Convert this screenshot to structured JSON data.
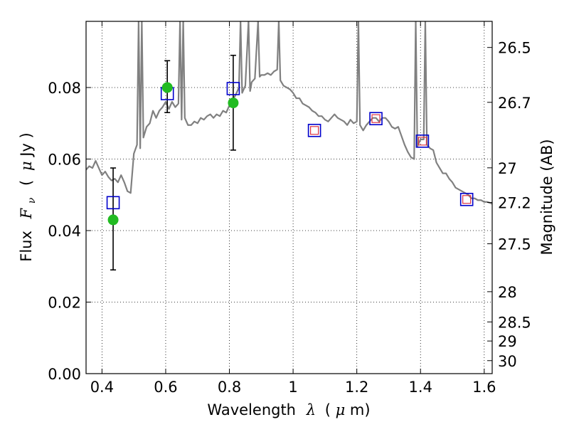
{
  "chart_data": {
    "type": "line",
    "xlabel": "Wavelength",
    "xlabel_symbol": "λ",
    "xlabel_unit_open": "(",
    "xlabel_unit_mu": "μ",
    "xlabel_unit_close": "m)",
    "ylabel": "Flux",
    "ylabel_symbol": "F",
    "ylabel_sub": "ν",
    "ylabel_unit_open": "(",
    "ylabel_unit_mu": "μ",
    "ylabel_unit_close": "Jy )",
    "y2label": "Magnitude (AB)",
    "xlim": [
      0.35,
      1.625
    ],
    "ylim": [
      0.0,
      0.0985
    ],
    "grid": true,
    "x_ticks": [
      0.4,
      0.6,
      0.8,
      1.0,
      1.2,
      1.4,
      1.6
    ],
    "x_tick_labels": [
      "0.4",
      "0.6",
      "0.8",
      "1",
      "1.2",
      "1.4",
      "1.6"
    ],
    "y_ticks": [
      0.0,
      0.02,
      0.04,
      0.06,
      0.08
    ],
    "y_tick_labels": [
      "0.00",
      "0.02",
      "0.04",
      "0.06",
      "0.08"
    ],
    "y2_ticks": [
      {
        "label": "26.5",
        "mag": 26.5
      },
      {
        "label": "26.7",
        "mag": 26.7
      },
      {
        "label": "27",
        "mag": 27.0
      },
      {
        "label": "27.2",
        "mag": 27.2
      },
      {
        "label": "27.5",
        "mag": 27.5
      },
      {
        "label": "28",
        "mag": 28.0
      },
      {
        "label": "28.5",
        "mag": 28.5
      },
      {
        "label": "29",
        "mag": 29.0
      },
      {
        "label": "30",
        "mag": 30.0
      }
    ],
    "colors": {
      "model": "#808080",
      "observed": "#22bb22",
      "model_band": "#0000cc",
      "inner_square": "#dd3344",
      "errorbar": "#000000"
    },
    "series": [
      {
        "name": "model_spectrum",
        "type": "line",
        "points": [
          [
            0.35,
            0.057
          ],
          [
            0.36,
            0.058
          ],
          [
            0.37,
            0.0575
          ],
          [
            0.38,
            0.0595
          ],
          [
            0.39,
            0.0575
          ],
          [
            0.4,
            0.0555
          ],
          [
            0.41,
            0.0565
          ],
          [
            0.42,
            0.055
          ],
          [
            0.43,
            0.054
          ],
          [
            0.44,
            0.0545
          ],
          [
            0.45,
            0.0535
          ],
          [
            0.46,
            0.0555
          ],
          [
            0.47,
            0.0535
          ],
          [
            0.48,
            0.051
          ],
          [
            0.49,
            0.0505
          ],
          [
            0.495,
            0.056
          ],
          [
            0.5,
            0.0615
          ],
          [
            0.51,
            0.064
          ],
          [
            0.515,
            0.0985
          ],
          [
            0.52,
            0.063
          ],
          [
            0.525,
            0.0985
          ],
          [
            0.53,
            0.066
          ],
          [
            0.54,
            0.069
          ],
          [
            0.55,
            0.07
          ],
          [
            0.56,
            0.0735
          ],
          [
            0.57,
            0.0715
          ],
          [
            0.58,
            0.0735
          ],
          [
            0.59,
            0.0745
          ],
          [
            0.6,
            0.076
          ],
          [
            0.61,
            0.074
          ],
          [
            0.62,
            0.076
          ],
          [
            0.63,
            0.0745
          ],
          [
            0.64,
            0.0755
          ],
          [
            0.645,
            0.0985
          ],
          [
            0.65,
            0.071
          ],
          [
            0.655,
            0.0985
          ],
          [
            0.66,
            0.0715
          ],
          [
            0.67,
            0.0695
          ],
          [
            0.68,
            0.0695
          ],
          [
            0.69,
            0.0705
          ],
          [
            0.7,
            0.07
          ],
          [
            0.71,
            0.0715
          ],
          [
            0.72,
            0.071
          ],
          [
            0.73,
            0.072
          ],
          [
            0.74,
            0.0725
          ],
          [
            0.75,
            0.0715
          ],
          [
            0.76,
            0.0725
          ],
          [
            0.77,
            0.072
          ],
          [
            0.78,
            0.0735
          ],
          [
            0.79,
            0.073
          ],
          [
            0.8,
            0.075
          ],
          [
            0.81,
            0.0765
          ],
          [
            0.82,
            0.078
          ],
          [
            0.83,
            0.08
          ],
          [
            0.835,
            0.0985
          ],
          [
            0.84,
            0.0785
          ],
          [
            0.85,
            0.0805
          ],
          [
            0.86,
            0.0985
          ],
          [
            0.865,
            0.079
          ],
          [
            0.87,
            0.0815
          ],
          [
            0.88,
            0.0825
          ],
          [
            0.89,
            0.0985
          ],
          [
            0.895,
            0.083
          ],
          [
            0.9,
            0.0835
          ],
          [
            0.91,
            0.0835
          ],
          [
            0.92,
            0.084
          ],
          [
            0.93,
            0.0835
          ],
          [
            0.94,
            0.0845
          ],
          [
            0.95,
            0.085
          ],
          [
            0.955,
            0.0985
          ],
          [
            0.96,
            0.082
          ],
          [
            0.97,
            0.0805
          ],
          [
            0.98,
            0.08
          ],
          [
            0.99,
            0.0795
          ],
          [
            1.0,
            0.0785
          ],
          [
            1.01,
            0.077
          ],
          [
            1.02,
            0.077
          ],
          [
            1.03,
            0.0755
          ],
          [
            1.04,
            0.075
          ],
          [
            1.05,
            0.0745
          ],
          [
            1.06,
            0.0735
          ],
          [
            1.07,
            0.073
          ],
          [
            1.08,
            0.072
          ],
          [
            1.09,
            0.072
          ],
          [
            1.1,
            0.071
          ],
          [
            1.11,
            0.0705
          ],
          [
            1.12,
            0.0715
          ],
          [
            1.13,
            0.0725
          ],
          [
            1.14,
            0.0715
          ],
          [
            1.15,
            0.071
          ],
          [
            1.16,
            0.0705
          ],
          [
            1.17,
            0.0695
          ],
          [
            1.18,
            0.071
          ],
          [
            1.19,
            0.07
          ],
          [
            1.2,
            0.0705
          ],
          [
            1.205,
            0.0985
          ],
          [
            1.21,
            0.0695
          ],
          [
            1.22,
            0.068
          ],
          [
            1.23,
            0.0695
          ],
          [
            1.24,
            0.0705
          ],
          [
            1.25,
            0.0715
          ],
          [
            1.26,
            0.0715
          ],
          [
            1.27,
            0.0705
          ],
          [
            1.28,
            0.0715
          ],
          [
            1.29,
            0.0715
          ],
          [
            1.3,
            0.0705
          ],
          [
            1.31,
            0.069
          ],
          [
            1.32,
            0.0685
          ],
          [
            1.33,
            0.069
          ],
          [
            1.34,
            0.0665
          ],
          [
            1.35,
            0.064
          ],
          [
            1.36,
            0.062
          ],
          [
            1.37,
            0.0605
          ],
          [
            1.38,
            0.06
          ],
          [
            1.385,
            0.0985
          ],
          [
            1.39,
            0.0635
          ],
          [
            1.4,
            0.0655
          ],
          [
            1.41,
            0.0655
          ],
          [
            1.415,
            0.0985
          ],
          [
            1.42,
            0.064
          ],
          [
            1.43,
            0.063
          ],
          [
            1.44,
            0.0625
          ],
          [
            1.45,
            0.059
          ],
          [
            1.46,
            0.0575
          ],
          [
            1.47,
            0.056
          ],
          [
            1.48,
            0.056
          ],
          [
            1.49,
            0.0545
          ],
          [
            1.5,
            0.0535
          ],
          [
            1.51,
            0.052
          ],
          [
            1.52,
            0.0515
          ],
          [
            1.53,
            0.051
          ],
          [
            1.54,
            0.0505
          ],
          [
            1.55,
            0.05
          ],
          [
            1.56,
            0.049
          ],
          [
            1.57,
            0.049
          ],
          [
            1.58,
            0.0485
          ],
          [
            1.59,
            0.0485
          ],
          [
            1.6,
            0.048
          ],
          [
            1.61,
            0.048
          ],
          [
            1.625,
            0.0475
          ]
        ]
      },
      {
        "name": "model_band_fluxes",
        "type": "marker-square",
        "points": [
          [
            0.435,
            0.0478
          ],
          [
            0.605,
            0.0783
          ],
          [
            0.812,
            0.0797
          ],
          [
            1.067,
            0.068
          ],
          [
            1.26,
            0.0713
          ],
          [
            1.406,
            0.065
          ],
          [
            1.545,
            0.0487
          ]
        ]
      },
      {
        "name": "inner_squares",
        "type": "marker-square-small",
        "points": [
          [
            1.067,
            0.068
          ],
          [
            1.26,
            0.0713
          ],
          [
            1.406,
            0.065
          ],
          [
            1.545,
            0.0487
          ]
        ]
      },
      {
        "name": "observed",
        "type": "marker-circle",
        "points": [
          [
            0.435,
            0.043
          ],
          [
            0.605,
            0.08
          ],
          [
            0.812,
            0.0757
          ]
        ],
        "errors": [
          [
            0.029,
            0.0575
          ],
          [
            0.073,
            0.0875
          ],
          [
            0.0625,
            0.089
          ]
        ]
      }
    ]
  }
}
